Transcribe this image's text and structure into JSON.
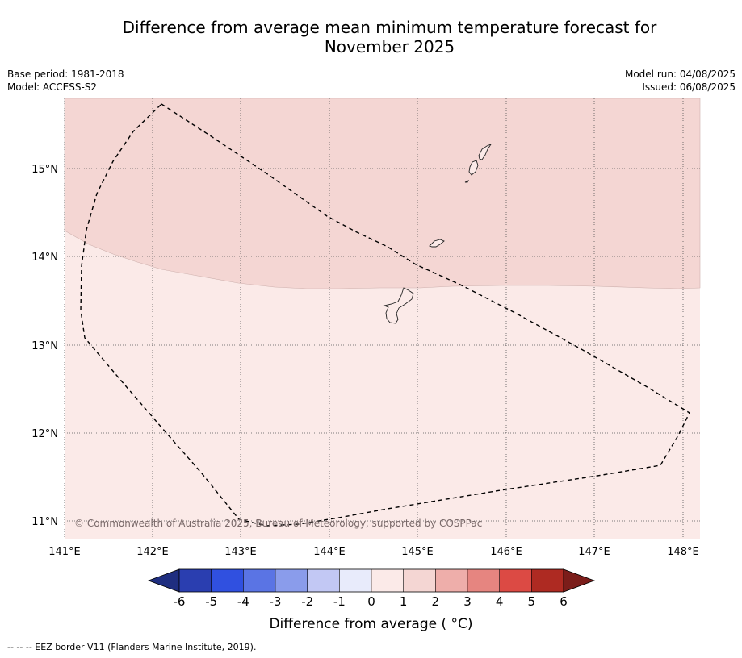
{
  "title": {
    "line1": "Difference from average mean minimum temperature forecast for",
    "line2": "November 2025"
  },
  "meta": {
    "base_period": "Base period: 1981-2018",
    "model": "Model: ACCESS-S2",
    "model_run": "Model run: 04/08/2025",
    "issued": "Issued: 06/08/2025"
  },
  "map": {
    "lat_labels": [
      "15°N",
      "14°N",
      "13°N",
      "12°N",
      "11°N"
    ],
    "lon_labels": [
      "141°E",
      "142°E",
      "143°E",
      "144°E",
      "145°E",
      "146°E",
      "147°E",
      "148°E"
    ],
    "copyright": "© Commonwealth of Australia 2025, Bureau of Meteorology, supported by COSPPac",
    "colors": {
      "anomaly_1_to_2": "#f4d6d3",
      "anomaly_0_to_1": "#fbeae8"
    }
  },
  "colorbar": {
    "ticks": [
      "-6",
      "-5",
      "-4",
      "-3",
      "-2",
      "-1",
      "0",
      "1",
      "2",
      "3",
      "4",
      "5",
      "6"
    ],
    "colors": [
      "#1f2e80",
      "#2a3eb0",
      "#3050e0",
      "#5a74e4",
      "#8a9ceb",
      "#c2c8f4",
      "#e8ebfb",
      "#fbeae8",
      "#f4d6d3",
      "#eeaeaa",
      "#e68580",
      "#dc4a44",
      "#ae2a22",
      "#7b1d1a"
    ],
    "label": "Difference from average ( °C)"
  },
  "footnote": "--  --  -- EEZ border V11 (Flanders Marine Institute, 2019)."
}
